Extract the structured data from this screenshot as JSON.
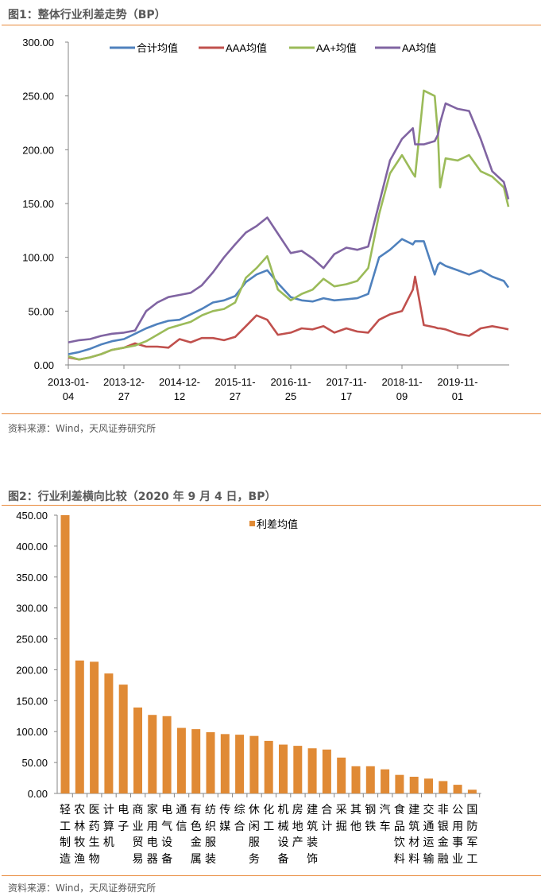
{
  "figure1": {
    "title": "图1：整体行业利差走势（BP）",
    "source": "资料来源：Wind，天风证券研究所",
    "chart_data": {
      "type": "line",
      "ylim": [
        0,
        300
      ],
      "yticks": [
        "0.00",
        "50.00",
        "100.00",
        "150.00",
        "200.00",
        "250.00",
        "300.00"
      ],
      "xtick_labels": [
        {
          "date": "2013-01-04",
          "line1": "2013-01-",
          "line2": "04"
        },
        {
          "date": "2013-12-27",
          "line1": "2013-12-",
          "line2": "27"
        },
        {
          "date": "2014-12-12",
          "line1": "2014-12-",
          "line2": "12"
        },
        {
          "date": "2015-11-27",
          "line1": "2015-11-",
          "line2": "27"
        },
        {
          "date": "2016-11-25",
          "line1": "2016-11-",
          "line2": "25"
        },
        {
          "date": "2017-11-17",
          "line1": "2017-11-",
          "line2": "17"
        },
        {
          "date": "2018-11-09",
          "line1": "2018-11-",
          "line2": "09"
        },
        {
          "date": "2019-11-01",
          "line1": "2019-11-",
          "line2": "01"
        }
      ],
      "x_end": "2020-09-04",
      "legend_position": "top",
      "grid": false,
      "x": [
        "2013-01-04",
        "2013-03-15",
        "2013-05-24",
        "2013-08-02",
        "2013-10-11",
        "2013-12-27",
        "2014-03-07",
        "2014-05-16",
        "2014-07-25",
        "2014-10-03",
        "2014-12-12",
        "2015-02-20",
        "2015-05-01",
        "2015-07-10",
        "2015-09-18",
        "2015-11-27",
        "2016-02-05",
        "2016-04-15",
        "2016-06-24",
        "2016-09-02",
        "2016-11-25",
        "2017-02-03",
        "2017-04-14",
        "2017-06-23",
        "2017-09-01",
        "2017-11-17",
        "2018-01-26",
        "2018-04-06",
        "2018-06-15",
        "2018-08-24",
        "2018-11-09",
        "2019-01-18",
        "2019-02-01",
        "2019-03-29",
        "2019-06-07",
        "2019-06-28",
        "2019-07-12",
        "2019-08-16",
        "2019-11-01",
        "2020-01-10",
        "2020-03-20",
        "2020-05-29",
        "2020-08-07",
        "2020-09-04"
      ],
      "series": [
        {
          "name": "合计均值",
          "color": "#4F81BD",
          "values": [
            10,
            12,
            15,
            19,
            22,
            24,
            29,
            34,
            38,
            41,
            42,
            47,
            52,
            58,
            60,
            64,
            77,
            84,
            88,
            76,
            63,
            60,
            59,
            62,
            60,
            61,
            62,
            66,
            100,
            107,
            117,
            112,
            115,
            115,
            84,
            93,
            95,
            92,
            88,
            84,
            88,
            82,
            78,
            72
          ]
        },
        {
          "name": "AAA均值",
          "color": "#C0504D",
          "values": [
            7,
            5,
            7,
            10,
            14,
            16,
            20,
            17,
            17,
            16,
            24,
            21,
            25,
            25,
            23,
            26,
            36,
            46,
            42,
            28,
            30,
            34,
            33,
            36,
            30,
            34,
            31,
            30,
            42,
            47,
            50,
            70,
            82,
            37,
            35,
            34,
            34,
            33,
            29,
            27,
            34,
            36,
            34,
            33
          ]
        },
        {
          "name": "AA+均值",
          "color": "#9BBB59",
          "values": [
            8,
            5,
            7,
            10,
            14,
            16,
            18,
            22,
            28,
            34,
            37,
            40,
            46,
            50,
            52,
            58,
            81,
            90,
            101,
            70,
            60,
            66,
            70,
            80,
            73,
            75,
            78,
            90,
            140,
            178,
            195,
            178,
            175,
            255,
            250,
            214,
            165,
            192,
            190,
            195,
            180,
            175,
            165,
            147
          ]
        },
        {
          "name": "AA均值",
          "color": "#8064A2",
          "values": [
            21,
            23,
            24,
            27,
            29,
            30,
            32,
            50,
            58,
            63,
            65,
            67,
            74,
            86,
            100,
            112,
            123,
            129,
            137,
            122,
            104,
            106,
            99,
            90,
            103,
            109,
            107,
            110,
            150,
            190,
            210,
            220,
            205,
            205,
            208,
            214,
            225,
            243,
            238,
            236,
            210,
            180,
            170,
            154
          ]
        }
      ]
    }
  },
  "figure2": {
    "title": "图2：行业利差横向比较（2020 年 9 月 4 日，BP）",
    "source": "资料来源：Wind，天风证券研究所",
    "chart_data": {
      "type": "bar",
      "ylim": [
        0,
        450
      ],
      "yticks": [
        "0.00",
        "50.00",
        "100.00",
        "150.00",
        "200.00",
        "250.00",
        "300.00",
        "350.00",
        "400.00",
        "450.00"
      ],
      "legend_position": "top",
      "grid": false,
      "series": [
        {
          "name": "利差均值",
          "color": "#E08A35"
        }
      ],
      "categories": [
        "轻工制造",
        "农林牧渔",
        "医药生物",
        "计算机",
        "电子",
        "商业贸易",
        "家用电器",
        "电气设备",
        "通信",
        "有色金属",
        "纺织服装",
        "传媒",
        "综合",
        "休闲服务",
        "化工",
        "机械设备",
        "房地产",
        "建筑装饰",
        "合计",
        "采掘",
        "其他",
        "钢铁",
        "汽车",
        "食品饮料",
        "建筑材料",
        "交通运输",
        "非银金融",
        "公用事业",
        "国防军工"
      ],
      "values": [
        450,
        215,
        213,
        194,
        176,
        139,
        127,
        125,
        106,
        104,
        99,
        96,
        95,
        93,
        85,
        79,
        77,
        73,
        71,
        58,
        44,
        44,
        39,
        30,
        27,
        24,
        20,
        14,
        6
      ]
    }
  }
}
